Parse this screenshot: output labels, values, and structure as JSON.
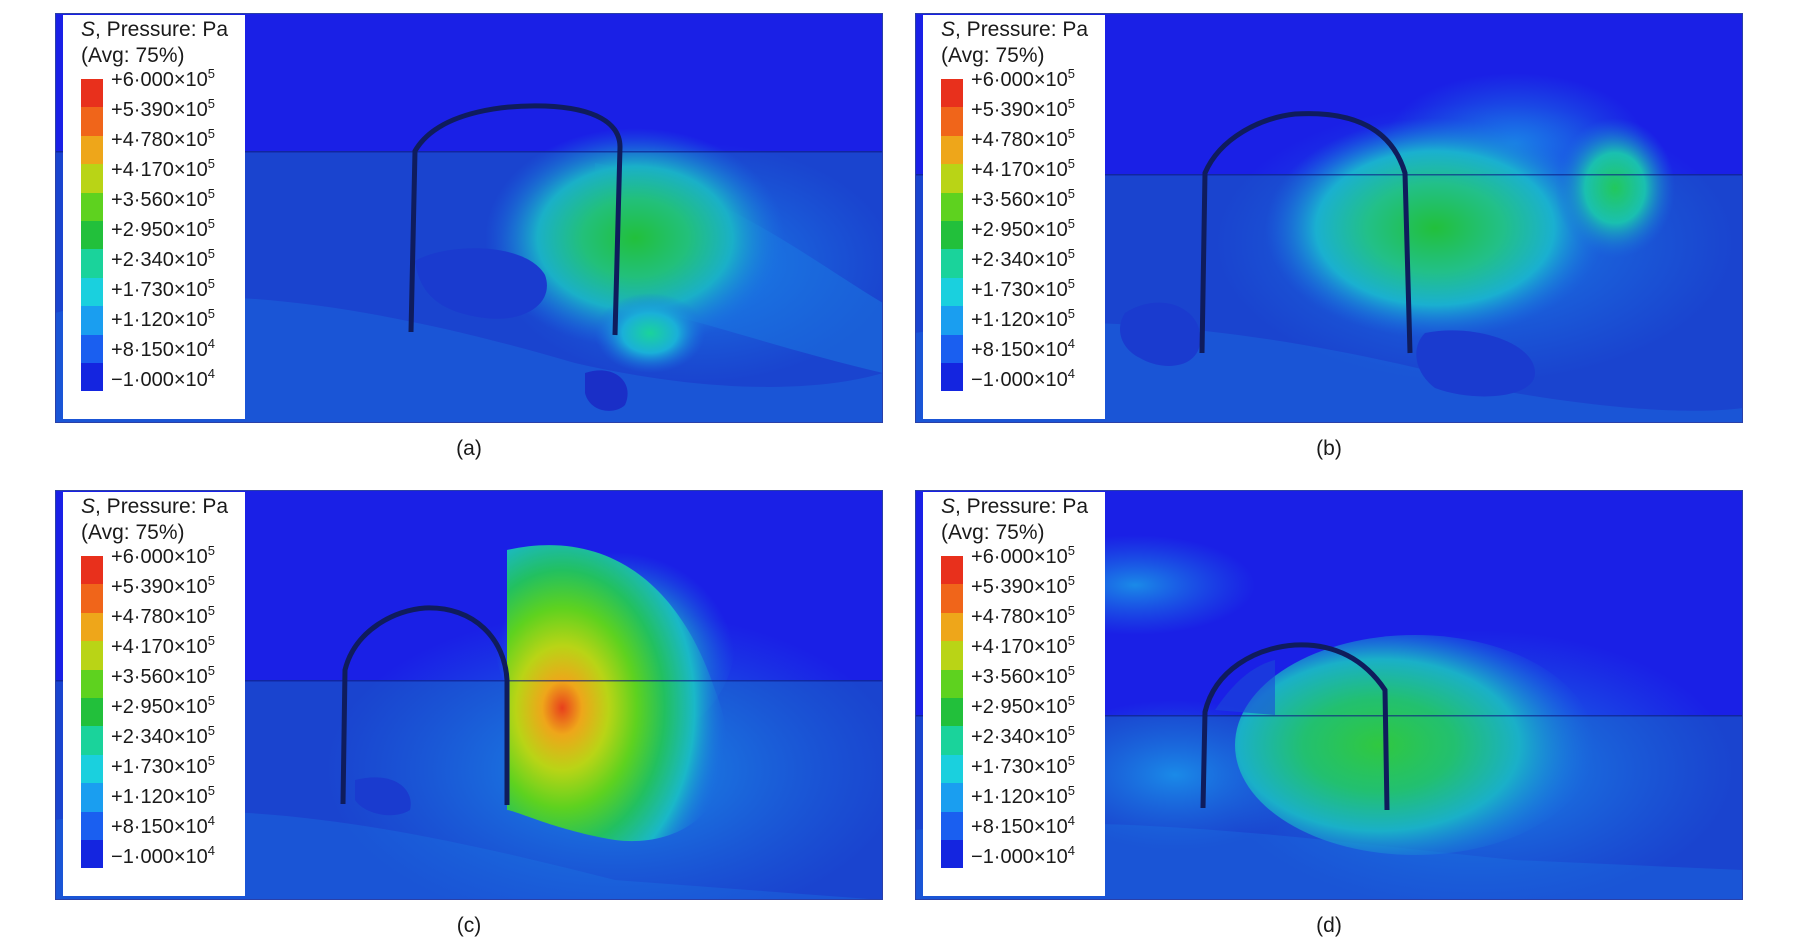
{
  "legend": {
    "title_symbol": "S",
    "title_rest": ", Pressure: Pa",
    "avg": "(Avg: 75%)",
    "ticks": [
      {
        "sign": "+",
        "mant": "6·000",
        "exp": "5"
      },
      {
        "sign": "+",
        "mant": "5·390",
        "exp": "5"
      },
      {
        "sign": "+",
        "mant": "4·780",
        "exp": "5"
      },
      {
        "sign": "+",
        "mant": "4·170",
        "exp": "5"
      },
      {
        "sign": "+",
        "mant": "3·560",
        "exp": "5"
      },
      {
        "sign": "+",
        "mant": "2·950",
        "exp": "5"
      },
      {
        "sign": "+",
        "mant": "2·340",
        "exp": "5"
      },
      {
        "sign": "+",
        "mant": "1·730",
        "exp": "5"
      },
      {
        "sign": "+",
        "mant": "1·120",
        "exp": "5"
      },
      {
        "sign": "+",
        "mant": "8·150",
        "exp": "4"
      },
      {
        "sign": "−",
        "mant": "1·000",
        "exp": "4"
      }
    ],
    "band_colors": [
      "#e8301c",
      "#f0651a",
      "#eea61a",
      "#b9d416",
      "#5ed21f",
      "#22c03b",
      "#1ad39b",
      "#1ad0de",
      "#1a9ef0",
      "#1a5ff0",
      "#1425e0"
    ]
  },
  "panels": [
    {
      "caption": "(a)"
    },
    {
      "caption": "(b)"
    },
    {
      "caption": "(c)"
    },
    {
      "caption": "(d)"
    }
  ]
}
